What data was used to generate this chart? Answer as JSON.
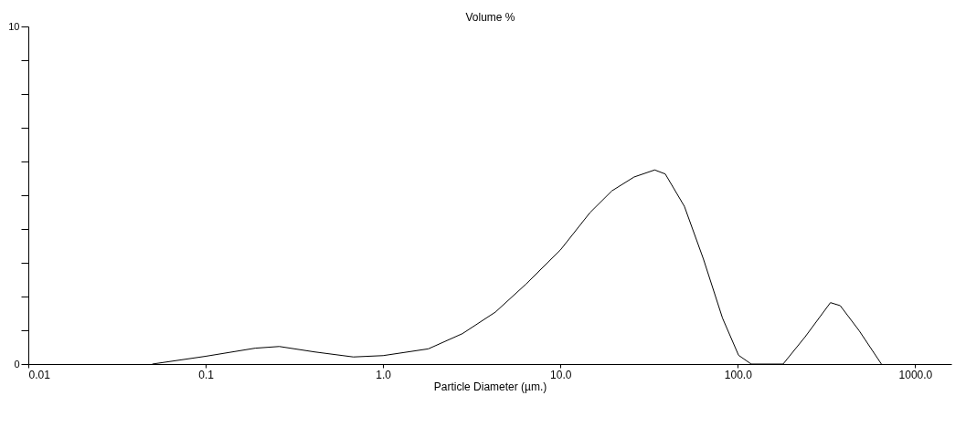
{
  "chart_data": {
    "type": "line",
    "xlabel": "Particle Diameter (µm.)",
    "ylabel": "Volume %",
    "log": "x",
    "grid": false,
    "marker": "none",
    "line_style": "solid",
    "xlim": [
      0.01,
      1600
    ],
    "ylim": [
      0,
      10
    ],
    "xticks": [
      {
        "value": 0.01,
        "label": "0.01"
      },
      {
        "value": 0.1,
        "label": "0.1"
      },
      {
        "value": 1,
        "label": "1.0"
      },
      {
        "value": 10,
        "label": "10.0"
      },
      {
        "value": 100,
        "label": "100.0"
      },
      {
        "value": 1000,
        "label": "1000.0"
      }
    ],
    "yticks": [
      0,
      {
        "value": 1,
        "label": null
      },
      {
        "value": 2,
        "label": null
      },
      {
        "value": 3,
        "label": null
      },
      {
        "value": 4,
        "label": null
      },
      {
        "value": 5,
        "label": null
      },
      {
        "value": 6,
        "label": null
      },
      {
        "value": 7,
        "label": null
      },
      {
        "value": 8,
        "label": null
      },
      {
        "value": 9,
        "label": null
      },
      10
    ],
    "x": [
      0.05,
      0.1,
      0.19,
      0.26,
      0.41,
      0.68,
      1.0,
      1.8,
      2.8,
      4.3,
      6.4,
      10,
      14.7,
      19.5,
      26,
      34,
      39,
      50,
      64,
      82,
      101,
      119,
      180,
      240,
      333,
      378,
      483,
      645
    ],
    "series": [
      {
        "color": "#000000",
        "values": [
          0,
          0.23,
          0.47,
          0.52,
          0.36,
          0.21,
          0.25,
          0.45,
          0.9,
          1.54,
          2.37,
          3.38,
          4.49,
          5.13,
          5.54,
          5.75,
          5.63,
          4.67,
          3.11,
          1.36,
          0.26,
          0,
          0,
          0.81,
          1.82,
          1.73,
          0.99,
          0
        ]
      }
    ]
  }
}
